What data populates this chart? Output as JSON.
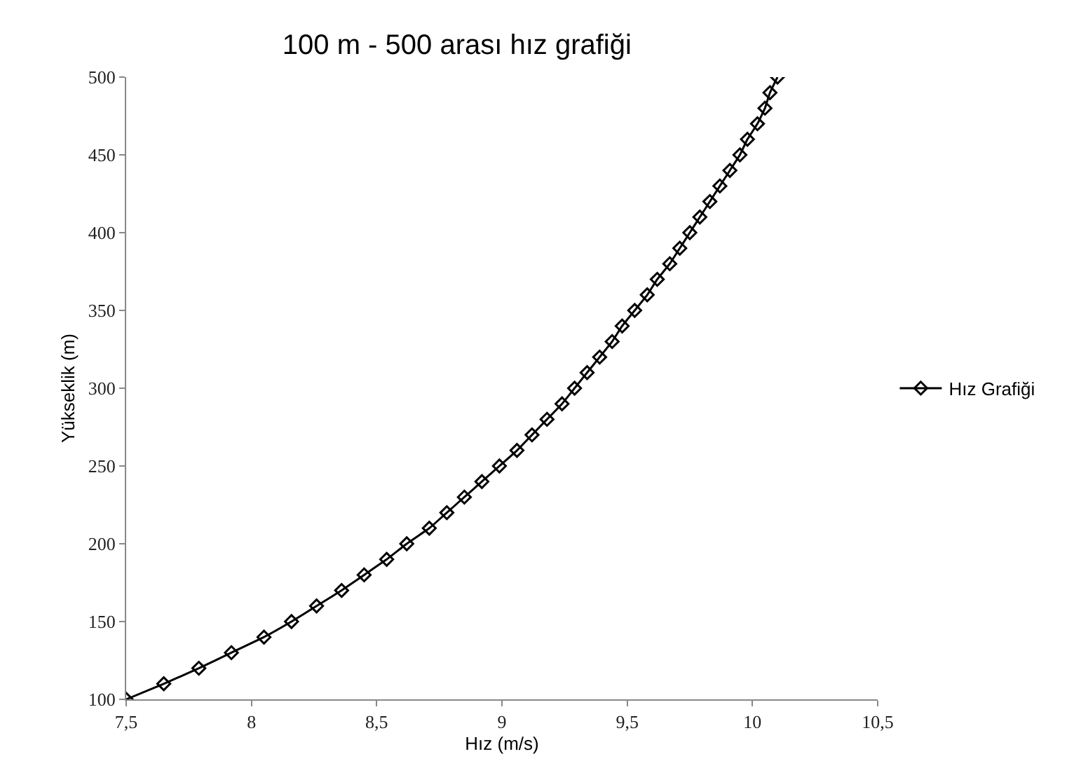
{
  "chart_data": {
    "type": "line",
    "title": "100 m - 500 arası hız grafiği",
    "xlabel": "Hız (m/s)",
    "ylabel": "Yükseklik (m)",
    "series": [
      {
        "name": "Hız Grafiği",
        "color": "#000000",
        "x": [
          7.5,
          7.65,
          7.79,
          7.92,
          8.05,
          8.16,
          8.26,
          8.36,
          8.45,
          8.54,
          8.62,
          8.71,
          8.78,
          8.85,
          8.92,
          8.99,
          9.06,
          9.12,
          9.18,
          9.24,
          9.29,
          9.34,
          9.39,
          9.44,
          9.48,
          9.53,
          9.58,
          9.62,
          9.67,
          9.71,
          9.75,
          9.79,
          9.83,
          9.87,
          9.91,
          9.95,
          9.98,
          10.02,
          10.05,
          10.07,
          10.1
        ],
        "values": [
          100,
          110,
          120,
          130,
          140,
          150,
          160,
          170,
          180,
          190,
          200,
          210,
          220,
          230,
          240,
          250,
          260,
          270,
          280,
          290,
          300,
          310,
          320,
          330,
          340,
          350,
          360,
          370,
          380,
          390,
          400,
          410,
          420,
          430,
          440,
          450,
          460,
          470,
          480,
          490,
          500
        ]
      }
    ],
    "xlim": [
      7.5,
      10.5
    ],
    "xticks": [
      {
        "value": 7.5,
        "label": "7,5"
      },
      8,
      {
        "value": 8.5,
        "label": "8,5"
      },
      9,
      {
        "value": 9.5,
        "label": "9,5"
      },
      10,
      {
        "value": 10.5,
        "label": "10,5"
      }
    ],
    "ylim": [
      100,
      500
    ],
    "yticks": [
      100,
      150,
      200,
      250,
      300,
      350,
      400,
      450,
      500
    ],
    "grid": false,
    "legend": "right",
    "marker": "diamond",
    "line_style": "solid"
  }
}
